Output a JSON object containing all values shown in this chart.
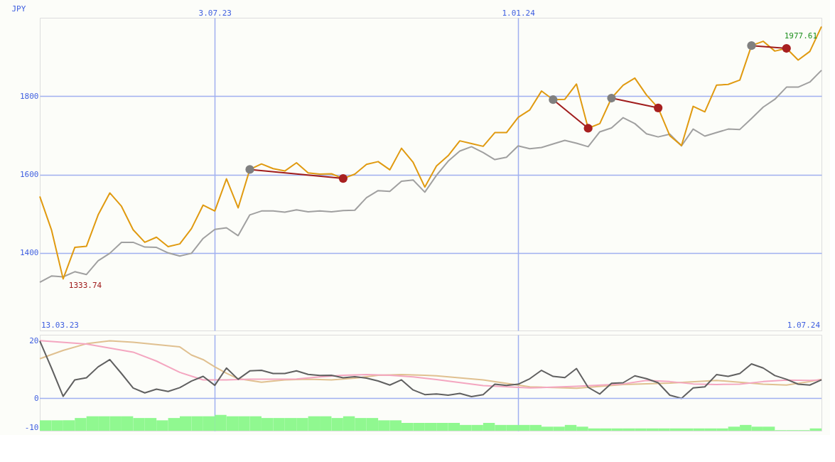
{
  "chart_data": [
    {
      "type": "line",
      "ylabel": "JPY",
      "grid": true,
      "x": [
        "2023-03-20",
        "2023-03-27",
        "2023-04-03",
        "2023-04-10",
        "2023-04-17",
        "2023-04-24",
        "2023-05-01",
        "2023-05-08",
        "2023-05-15",
        "2023-05-22",
        "2023-05-29",
        "2023-06-05",
        "2023-06-12",
        "2023-06-19",
        "2023-06-26",
        "2023-07-03",
        "2023-07-10",
        "2023-07-17",
        "2023-07-24",
        "2023-07-31",
        "2023-08-07",
        "2023-08-14",
        "2023-08-21",
        "2023-08-28",
        "2023-09-04",
        "2023-09-11",
        "2023-09-18",
        "2023-09-25",
        "2023-10-02",
        "2023-10-09",
        "2023-10-16",
        "2023-10-23",
        "2023-10-30",
        "2023-11-06",
        "2023-11-13",
        "2023-11-20",
        "2023-11-27",
        "2023-12-04",
        "2023-12-11",
        "2023-12-18",
        "2023-12-25",
        "2024-01-01",
        "2024-01-08",
        "2024-01-15",
        "2024-01-22",
        "2024-01-29",
        "2024-02-05",
        "2024-02-12",
        "2024-02-19",
        "2024-02-26",
        "2024-03-04",
        "2024-03-11",
        "2024-03-18",
        "2024-03-25",
        "2024-04-01",
        "2024-04-08",
        "2024-04-15",
        "2024-04-22",
        "2024-04-29",
        "2024-05-06",
        "2024-05-13",
        "2024-05-20",
        "2024-05-27",
        "2024-06-03",
        "2024-06-10",
        "2024-06-17",
        "2024-06-24",
        "2024-07-01"
      ],
      "xlim": [
        "2023-03-20",
        "2024-07-01"
      ],
      "xticks": [
        {
          "value": "2023-07-03",
          "label": "3.07.23"
        },
        {
          "value": "2024-01-01",
          "label": "1.01.24"
        }
      ],
      "ylim": [
        1202,
        2000
      ],
      "yticks": [
        1400,
        1600,
        1800
      ],
      "series": [
        {
          "color": "#a0a0a0",
          "values": [
            1325,
            1341,
            1339,
            1352,
            1345,
            1380,
            1399,
            1427,
            1427,
            1415,
            1414,
            1400,
            1392,
            1399,
            1437,
            1460,
            1464,
            1444,
            1497,
            1507,
            1507,
            1504,
            1510,
            1505,
            1507,
            1505,
            1508,
            1509,
            1541,
            1559,
            1557,
            1583,
            1586,
            1555,
            1598,
            1634,
            1660,
            1671,
            1656,
            1638,
            1644,
            1673,
            1666,
            1669,
            1678,
            1687,
            1680,
            1671,
            1709,
            1719,
            1745,
            1730,
            1704,
            1696,
            1703,
            1673,
            1716,
            1698,
            1707,
            1716,
            1715,
            1743,
            1772,
            1792,
            1823,
            1823,
            1836,
            1866
          ]
        },
        {
          "color": "#e09a10",
          "values": [
            1544,
            1459,
            1333.74,
            1414,
            1417,
            1497,
            1553,
            1519,
            1459,
            1427,
            1440,
            1416,
            1423,
            1462,
            1522,
            1507,
            1589,
            1515,
            1613,
            1627,
            1615,
            1609,
            1630,
            1604,
            1601,
            1602,
            1590,
            1601,
            1626,
            1633,
            1612,
            1667,
            1631,
            1568,
            1622,
            1648,
            1686,
            1679,
            1672,
            1707,
            1707,
            1746,
            1765,
            1813,
            1791,
            1792,
            1831,
            1718,
            1730,
            1795,
            1828,
            1846,
            1803,
            1770,
            1699,
            1674,
            1774,
            1760,
            1828,
            1830,
            1841,
            1929,
            1940,
            1915,
            1922,
            1892,
            1914,
            1977.61
          ]
        },
        {
          "type": "line",
          "color": "#a01c1c",
          "x": [
            "2023-07-24",
            "2023-09-18"
          ],
          "values": [
            1613,
            1590
          ]
        },
        {
          "type": "line",
          "color": "#a01c1c",
          "x": [
            "2024-01-22",
            "2024-02-12"
          ],
          "values": [
            1791,
            1718
          ]
        },
        {
          "type": "line",
          "color": "#a01c1c",
          "x": [
            "2024-02-26",
            "2024-03-25"
          ],
          "values": [
            1795,
            1770
          ]
        },
        {
          "type": "line",
          "color": "#a01c1c",
          "x": [
            "2024-05-20",
            "2024-06-10"
          ],
          "values": [
            1929,
            1922
          ]
        },
        {
          "type": "scatter",
          "marker": "circle",
          "color": "#808080",
          "x": [
            "2023-07-24",
            "2024-01-22",
            "2024-02-26",
            "2024-05-20"
          ],
          "values": [
            1613,
            1791,
            1795,
            1929
          ]
        },
        {
          "type": "scatter",
          "marker": "circle",
          "color": "#a82020",
          "x": [
            "2023-09-18",
            "2024-02-12",
            "2024-03-25",
            "2024-06-10"
          ],
          "values": [
            1590,
            1718,
            1770,
            1922
          ]
        }
      ],
      "annotations": [
        "13.03.23",
        "1.07.24",
        {
          "text": "1333.74",
          "x": "2023-04-03",
          "y": 1333.74
        },
        {
          "text": "1977.61",
          "x": "2024-07-01",
          "y": 1977.61
        }
      ]
    },
    {
      "type": "line",
      "grid": "x",
      "tick_labels": "y",
      "x": [
        "2023-03-20",
        "2023-03-27",
        "2023-04-03",
        "2023-04-10",
        "2023-04-17",
        "2023-04-24",
        "2023-05-01",
        "2023-05-08",
        "2023-05-15",
        "2023-05-22",
        "2023-05-29",
        "2023-06-05",
        "2023-06-12",
        "2023-06-19",
        "2023-06-26",
        "2023-07-03",
        "2023-07-10",
        "2023-07-17",
        "2023-07-24",
        "2023-07-31",
        "2023-08-07",
        "2023-08-14",
        "2023-08-21",
        "2023-08-28",
        "2023-09-04",
        "2023-09-11",
        "2023-09-18",
        "2023-09-25",
        "2023-10-02",
        "2023-10-09",
        "2023-10-16",
        "2023-10-23",
        "2023-10-30",
        "2023-11-06",
        "2023-11-13",
        "2023-11-20",
        "2023-11-27",
        "2023-12-04",
        "2023-12-11",
        "2023-12-18",
        "2023-12-25",
        "2024-01-01",
        "2024-01-08",
        "2024-01-15",
        "2024-01-22",
        "2024-01-29",
        "2024-02-05",
        "2024-02-12",
        "2024-02-19",
        "2024-02-26",
        "2024-03-04",
        "2024-03-11",
        "2024-03-18",
        "2024-03-25",
        "2024-04-01",
        "2024-04-08",
        "2024-04-15",
        "2024-04-22",
        "2024-04-29",
        "2024-05-06",
        "2024-05-13",
        "2024-05-20",
        "2024-05-27",
        "2024-06-03",
        "2024-06-10",
        "2024-06-17",
        "2024-06-24",
        "2024-07-01"
      ],
      "xlim": [
        "2023-03-20",
        "2024-07-01"
      ],
      "xticks": [
        "2023-07-03",
        "2024-01-01"
      ],
      "ylim": [
        -11.2,
        22
      ],
      "yticks": [
        -10,
        0,
        20
      ],
      "ref_lines": [
        {
          "axis": "y",
          "value": 0,
          "color": "#a0b0f0"
        }
      ],
      "series": [
        {
          "type": "bar",
          "color": "#90f890",
          "x": [
            "2023-03-23T12:00",
            "2023-03-30T12:00",
            "2023-04-06T12:00",
            "2023-04-13T12:00",
            "2023-04-20T12:00",
            "2023-04-27T12:00",
            "2023-05-04T12:00",
            "2023-05-11T12:00",
            "2023-05-18T12:00",
            "2023-05-25T12:00",
            "2023-06-01T12:00",
            "2023-06-08T12:00",
            "2023-06-15T12:00",
            "2023-06-22T12:00",
            "2023-06-29T12:00",
            "2023-07-06T12:00",
            "2023-07-13T12:00",
            "2023-07-20T12:00",
            "2023-07-27T12:00",
            "2023-08-03T12:00",
            "2023-08-10T12:00",
            "2023-08-17T12:00",
            "2023-08-24T12:00",
            "2023-08-31T12:00",
            "2023-09-07T12:00",
            "2023-09-14T12:00",
            "2023-09-21T12:00",
            "2023-09-28T12:00",
            "2023-10-05T12:00",
            "2023-10-12T12:00",
            "2023-10-19T12:00",
            "2023-10-26T12:00",
            "2023-11-02T12:00",
            "2023-11-09T12:00",
            "2023-11-16T12:00",
            "2023-11-23T12:00",
            "2023-11-30T12:00",
            "2023-12-07T12:00",
            "2023-12-14T12:00",
            "2023-12-21T12:00",
            "2023-12-28T12:00",
            "2024-01-04T12:00",
            "2024-01-11T12:00",
            "2024-01-18T12:00",
            "2024-01-25T12:00",
            "2024-02-01T12:00",
            "2024-02-08T12:00",
            "2024-02-15T12:00",
            "2024-02-22T12:00",
            "2024-02-29T12:00",
            "2024-03-07T12:00",
            "2024-03-14T12:00",
            "2024-03-21T12:00",
            "2024-03-28T12:00",
            "2024-04-04T12:00",
            "2024-04-11T12:00",
            "2024-04-18T12:00",
            "2024-04-25T12:00",
            "2024-05-02T12:00",
            "2024-05-09T12:00",
            "2024-05-16T12:00",
            "2024-05-23T12:00",
            "2024-05-30T12:00",
            "2024-06-06T12:00",
            "2024-06-13T12:00",
            "2024-06-20T12:00",
            "2024-06-27T12:00"
          ],
          "base": [
            -11.2,
            -11.2,
            -11.2,
            -11.2,
            -11.2,
            -11.2,
            -11.2,
            -11.2,
            -11.2,
            -11.2,
            -11.2,
            -11.2,
            -11.2,
            -11.2,
            -11.2,
            -11.2,
            -11.2,
            -11.2,
            -11.2,
            -11.2,
            -11.2,
            -11.2,
            -11.2,
            -11.2,
            -11.2,
            -11.2,
            -11.2,
            -11.2,
            -11.2,
            -11.2,
            -11.2,
            -11.2,
            -11.2,
            -11.2,
            -11.2,
            -11.2,
            -11.2,
            -11.2,
            -11.2,
            -11.2,
            -11.2,
            -11.2,
            -11.2,
            -11.2,
            -11.2,
            -11.2,
            -11.2,
            -11.2,
            -11.2,
            -11.2,
            -11.2,
            -11.2,
            -11.2,
            -11.2,
            -11.2,
            -11.2,
            -11.2,
            -11.2,
            -11.2,
            -11.2,
            -11.2,
            -11.2,
            -11.2,
            -11.2,
            -11.2,
            -11.2,
            -11.2
          ],
          "values": [
            3.6,
            3.6,
            3.6,
            4.4,
            5.0,
            5.0,
            5.0,
            5.0,
            4.4,
            4.4,
            3.6,
            4.4,
            5.0,
            5.0,
            5.0,
            5.5,
            5.0,
            5.0,
            5.0,
            4.4,
            4.4,
            4.4,
            4.4,
            5.0,
            5.0,
            4.4,
            5.0,
            4.4,
            4.4,
            3.6,
            3.6,
            2.7,
            2.7,
            2.7,
            2.7,
            2.7,
            2.0,
            2.0,
            2.7,
            2.0,
            2.0,
            2.0,
            2.0,
            1.4,
            1.4,
            2.0,
            1.4,
            0.8,
            0.8,
            0.8,
            0.8,
            0.8,
            0.8,
            0.8,
            0.8,
            0.8,
            0.8,
            0.8,
            0.8,
            1.4,
            2.0,
            1.4,
            1.4,
            0.2,
            0.2,
            0.2,
            0.8
          ]
        },
        {
          "color": "#e0c090",
          "x": [
            "2023-03-20",
            "2023-04-03",
            "2023-04-17",
            "2023-05-01",
            "2023-05-15",
            "2023-05-29",
            "2023-06-12",
            "2023-06-19",
            "2023-06-26",
            "2023-07-03",
            "2023-07-10",
            "2023-07-17",
            "2023-07-31",
            "2023-08-14",
            "2023-08-28",
            "2023-09-11",
            "2023-09-25",
            "2023-10-09",
            "2023-10-23",
            "2023-11-06",
            "2023-11-13",
            "2023-12-11",
            "2024-01-08",
            "2024-02-05",
            "2024-03-04",
            "2024-04-01",
            "2024-04-29",
            "2024-05-27",
            "2024-06-10",
            "2024-06-24",
            "2024-07-01"
          ],
          "values": [
            13.7,
            16.6,
            18.9,
            19.9,
            19.4,
            18.6,
            17.8,
            15.0,
            13.4,
            10.9,
            8.7,
            6.8,
            5.6,
            6.4,
            6.6,
            6.4,
            7.0,
            8.0,
            8.2,
            8.0,
            7.8,
            6.4,
            4.0,
            3.5,
            4.8,
            5.3,
            6.2,
            4.9,
            4.6,
            5.8,
            6.6
          ]
        },
        {
          "color": "#f4a6c0",
          "x": [
            "2023-03-20",
            "2023-04-17",
            "2023-05-15",
            "2023-05-29",
            "2023-06-12",
            "2023-06-26",
            "2023-07-10",
            "2023-07-24",
            "2023-08-07",
            "2023-08-21",
            "2023-09-04",
            "2023-09-18",
            "2023-10-02",
            "2023-10-16",
            "2023-10-30",
            "2023-11-13",
            "2023-12-11",
            "2024-01-08",
            "2024-02-05",
            "2024-03-04",
            "2024-03-18",
            "2024-04-01",
            "2024-04-15",
            "2024-04-29",
            "2024-05-13",
            "2024-05-27",
            "2024-06-10",
            "2024-06-24",
            "2024-07-01"
          ],
          "values": [
            20,
            18.8,
            16.0,
            12.9,
            9.0,
            6.4,
            6.4,
            6.6,
            6.6,
            6.7,
            7.4,
            8.0,
            8.2,
            8.0,
            7.4,
            6.5,
            4.4,
            3.6,
            4.2,
            5.0,
            6.2,
            5.8,
            5.0,
            4.8,
            4.9,
            5.8,
            6.3,
            6.2,
            6.4
          ]
        },
        {
          "color": "#606060",
          "values": [
            19.9,
            10.5,
            0.7,
            6.4,
            7.1,
            10.9,
            13.4,
            8.6,
            3.6,
            1.9,
            3.2,
            2.4,
            3.7,
            6.0,
            7.6,
            4.5,
            10.5,
            6.6,
            9.5,
            9.7,
            8.6,
            8.6,
            9.5,
            8.3,
            7.9,
            8.0,
            7.1,
            7.5,
            7.0,
            6.0,
            4.6,
            6.4,
            2.9,
            1.3,
            1.5,
            1.1,
            1.7,
            0.6,
            1.3,
            4.9,
            4.5,
            4.9,
            6.8,
            9.7,
            7.6,
            7.2,
            10.3,
            3.8,
            1.5,
            5.2,
            5.4,
            7.8,
            6.8,
            5.4,
            1.1,
            0,
            3.6,
            4.0,
            8.2,
            7.6,
            8.6,
            11.9,
            10.5,
            7.9,
            6.6,
            4.9,
            4.6,
            6.4
          ]
        }
      ]
    }
  ]
}
